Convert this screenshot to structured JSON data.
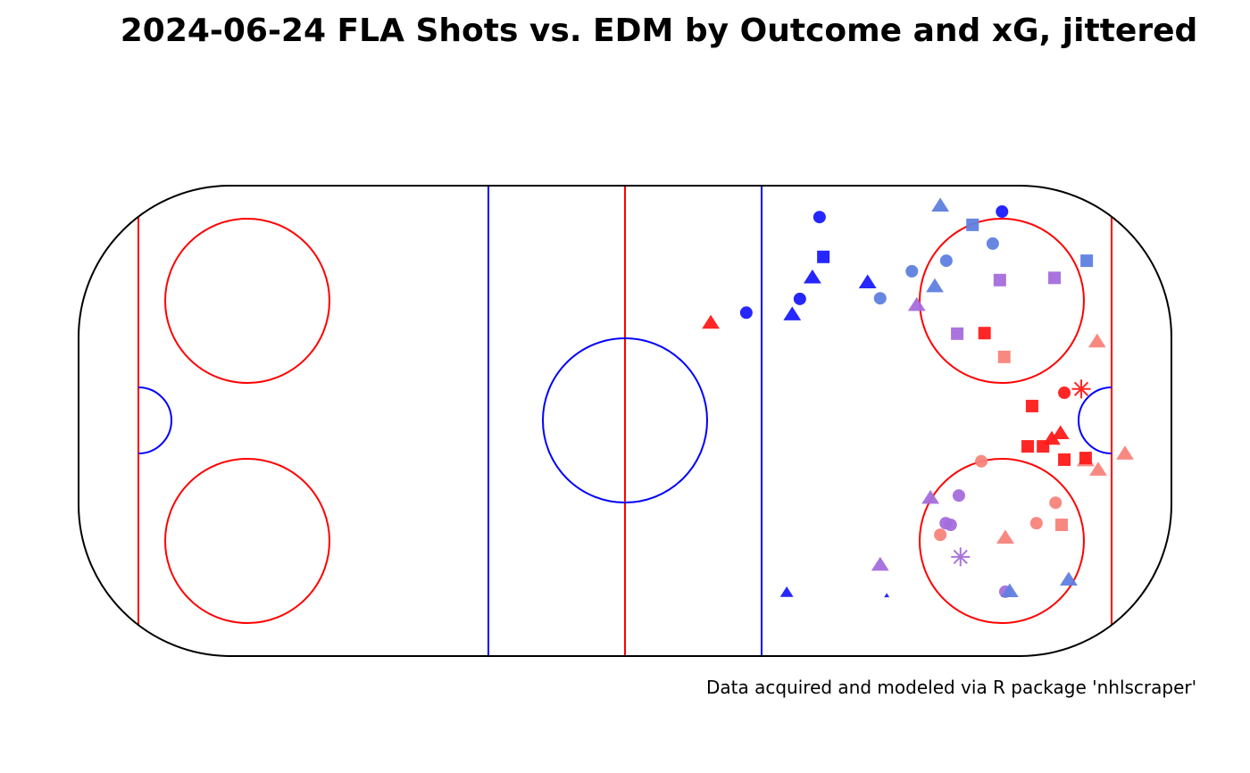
{
  "chart_data": {
    "type": "scatter",
    "title": "2024-06-24 FLA Shots vs. EDM by Outcome and xG, jittered",
    "caption": "Data acquired and modeled via R package 'nhlscraper'",
    "xlim": [
      -100,
      100
    ],
    "ylim": [
      -42.5,
      42.5
    ],
    "grid": false,
    "legend": "none",
    "colors": {
      "blue": "#1a1aff",
      "steel": "#5f7fdf",
      "purple": "#a46ddc",
      "salmon": "#f8837a",
      "red": "#ff1a1a"
    },
    "points": [
      {
        "x": 35.6,
        "y": 36.8,
        "shape": "circle",
        "color": "blue",
        "size": 1
      },
      {
        "x": 36.3,
        "y": 29.6,
        "shape": "square",
        "color": "blue",
        "size": 1
      },
      {
        "x": 34.3,
        "y": 25.8,
        "shape": "triangle",
        "color": "blue",
        "size": 1
      },
      {
        "x": 32.0,
        "y": 22.0,
        "shape": "circle",
        "color": "blue",
        "size": 1
      },
      {
        "x": 30.6,
        "y": 19.1,
        "shape": "triangle",
        "color": "blue",
        "size": 1
      },
      {
        "x": 22.2,
        "y": 19.5,
        "shape": "circle",
        "color": "blue",
        "size": 1
      },
      {
        "x": 15.7,
        "y": 17.6,
        "shape": "triangle",
        "color": "red",
        "size": 1
      },
      {
        "x": 44.4,
        "y": 24.9,
        "shape": "triangle",
        "color": "blue",
        "size": 1
      },
      {
        "x": 46.7,
        "y": 22.1,
        "shape": "circle",
        "color": "steel",
        "size": 1
      },
      {
        "x": 52.5,
        "y": 27.0,
        "shape": "circle",
        "color": "steel",
        "size": 1
      },
      {
        "x": 58.8,
        "y": 28.9,
        "shape": "circle",
        "color": "steel",
        "size": 1
      },
      {
        "x": 56.7,
        "y": 24.2,
        "shape": "triangle",
        "color": "steel",
        "size": 1
      },
      {
        "x": 53.4,
        "y": 20.8,
        "shape": "triangle",
        "color": "purple",
        "size": 1
      },
      {
        "x": 57.7,
        "y": 38.8,
        "shape": "triangle",
        "color": "steel",
        "size": 1
      },
      {
        "x": 63.6,
        "y": 35.4,
        "shape": "square",
        "color": "steel",
        "size": 1
      },
      {
        "x": 69.0,
        "y": 37.8,
        "shape": "circle",
        "color": "blue",
        "size": 1
      },
      {
        "x": 67.3,
        "y": 32.0,
        "shape": "circle",
        "color": "steel",
        "size": 1
      },
      {
        "x": 68.6,
        "y": 25.4,
        "shape": "square",
        "color": "purple",
        "size": 1
      },
      {
        "x": 78.6,
        "y": 25.8,
        "shape": "square",
        "color": "purple",
        "size": 1
      },
      {
        "x": 84.5,
        "y": 28.9,
        "shape": "square",
        "color": "steel",
        "size": 1
      },
      {
        "x": 60.8,
        "y": 15.7,
        "shape": "square",
        "color": "purple",
        "size": 1
      },
      {
        "x": 65.8,
        "y": 15.8,
        "shape": "square",
        "color": "red",
        "size": 1
      },
      {
        "x": 69.4,
        "y": 11.5,
        "shape": "square",
        "color": "salmon",
        "size": 1
      },
      {
        "x": 86.4,
        "y": 14.2,
        "shape": "triangle",
        "color": "salmon",
        "size": 1
      },
      {
        "x": 83.5,
        "y": 5.7,
        "shape": "asterisk",
        "color": "red",
        "size": 1
      },
      {
        "x": 80.4,
        "y": 5.0,
        "shape": "circle",
        "color": "red",
        "size": 1
      },
      {
        "x": 74.5,
        "y": 2.6,
        "shape": "square",
        "color": "red",
        "size": 1
      },
      {
        "x": 78.1,
        "y": -3.4,
        "shape": "triangle",
        "color": "red",
        "size": 1
      },
      {
        "x": 79.7,
        "y": -2.4,
        "shape": "triangle",
        "color": "red",
        "size": 1
      },
      {
        "x": 73.7,
        "y": -4.7,
        "shape": "square",
        "color": "red",
        "size": 1
      },
      {
        "x": 76.5,
        "y": -4.7,
        "shape": "square",
        "color": "red",
        "size": 1
      },
      {
        "x": 80.4,
        "y": -7.1,
        "shape": "square",
        "color": "red",
        "size": 1
      },
      {
        "x": 84.3,
        "y": -7.3,
        "shape": "triangle",
        "color": "salmon",
        "size": 1
      },
      {
        "x": 84.3,
        "y": -6.8,
        "shape": "square",
        "color": "red",
        "size": 1
      },
      {
        "x": 86.6,
        "y": -9.0,
        "shape": "triangle",
        "color": "salmon",
        "size": 1
      },
      {
        "x": 91.5,
        "y": -6.1,
        "shape": "triangle",
        "color": "salmon",
        "size": 1
      },
      {
        "x": 65.2,
        "y": -7.4,
        "shape": "circle",
        "color": "salmon",
        "size": 1
      },
      {
        "x": 55.9,
        "y": -14.1,
        "shape": "triangle",
        "color": "purple",
        "size": 1
      },
      {
        "x": 61.1,
        "y": -13.6,
        "shape": "circle",
        "color": "purple",
        "size": 1
      },
      {
        "x": 58.7,
        "y": -18.6,
        "shape": "circle",
        "color": "purple",
        "size": 1
      },
      {
        "x": 59.6,
        "y": -18.9,
        "shape": "circle",
        "color": "purple",
        "size": 1
      },
      {
        "x": 57.7,
        "y": -20.7,
        "shape": "circle",
        "color": "salmon",
        "size": 1
      },
      {
        "x": 78.8,
        "y": -14.9,
        "shape": "circle",
        "color": "salmon",
        "size": 1
      },
      {
        "x": 75.3,
        "y": -18.6,
        "shape": "circle",
        "color": "salmon",
        "size": 1
      },
      {
        "x": 79.9,
        "y": -18.9,
        "shape": "square",
        "color": "salmon",
        "size": 1
      },
      {
        "x": 69.6,
        "y": -21.3,
        "shape": "triangle",
        "color": "salmon",
        "size": 1
      },
      {
        "x": 61.4,
        "y": -24.7,
        "shape": "asterisk",
        "color": "purple",
        "size": 1
      },
      {
        "x": 46.7,
        "y": -26.2,
        "shape": "triangle",
        "color": "purple",
        "size": 1
      },
      {
        "x": 29.6,
        "y": -31.2,
        "shape": "triangle",
        "color": "blue",
        "size": 0.75
      },
      {
        "x": 47.9,
        "y": -31.7,
        "shape": "triangle",
        "color": "blue",
        "size": 0.3
      },
      {
        "x": 69.6,
        "y": -31.0,
        "shape": "circle",
        "color": "purple",
        "size": 1
      },
      {
        "x": 70.4,
        "y": -31.0,
        "shape": "triangle",
        "color": "steel",
        "size": 1
      },
      {
        "x": 81.2,
        "y": -28.9,
        "shape": "triangle",
        "color": "steel",
        "size": 1
      }
    ]
  }
}
